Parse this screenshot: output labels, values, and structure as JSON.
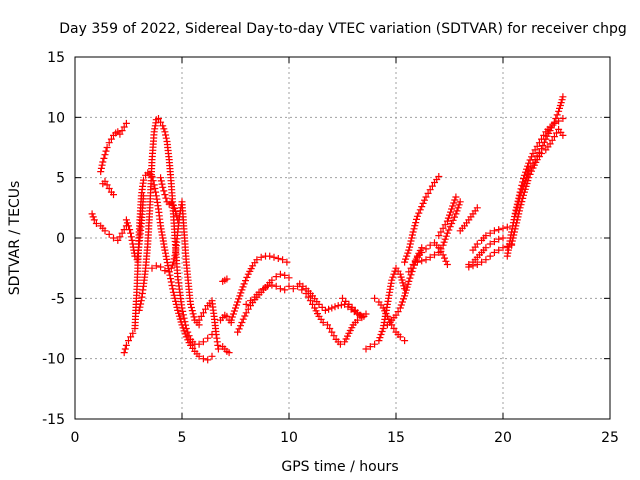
{
  "chart_data": {
    "type": "scatter",
    "title": "Day 359 of 2022, Sidereal Day-to-day VTEC variation (SDTVAR) for receiver chpg",
    "xlabel": "GPS time / hours",
    "ylabel": "SDTVAR / TECUs",
    "xlim": [
      0,
      25
    ],
    "ylim": [
      -15,
      15
    ],
    "xticks": [
      0,
      5,
      10,
      15,
      20,
      25
    ],
    "yticks": [
      -15,
      -10,
      -5,
      0,
      5,
      10,
      15
    ],
    "grid": true,
    "marker": "plus",
    "color": "#ff0000",
    "series": [
      {
        "name": "arc-1",
        "x": [
          0.8,
          0.9,
          1.0,
          1.2,
          1.4,
          1.6,
          1.8,
          2.0,
          2.2,
          2.4
        ],
        "y": [
          2.0,
          1.5,
          1.2,
          1.0,
          0.6,
          0.3,
          0.0,
          -0.2,
          0.4,
          1.0
        ]
      },
      {
        "name": "arc-2",
        "x": [
          1.2,
          1.3,
          1.4,
          1.5,
          1.6,
          1.7,
          1.8,
          1.9,
          2.0,
          2.1,
          2.2,
          2.3,
          2.4
        ],
        "y": [
          5.5,
          6.3,
          6.9,
          7.5,
          7.9,
          8.2,
          8.5,
          8.7,
          8.8,
          8.6,
          8.9,
          9.2,
          9.5
        ]
      },
      {
        "name": "arc-3",
        "x": [
          1.3,
          1.4,
          1.5,
          1.6,
          1.7,
          1.8
        ],
        "y": [
          4.5,
          4.7,
          4.4,
          4.1,
          3.8,
          3.6
        ]
      },
      {
        "name": "arc-4",
        "x": [
          2.3,
          2.4,
          2.5,
          2.6,
          2.7,
          2.8,
          2.9,
          3.0,
          3.1,
          3.2,
          3.3,
          3.4,
          3.5,
          3.6,
          3.7,
          3.8,
          3.9,
          4.0,
          4.2,
          4.4,
          4.6,
          4.8,
          5.0,
          5.2,
          5.4,
          5.6,
          5.8,
          6.0,
          6.2,
          6.4
        ],
        "y": [
          -9.5,
          -8.9,
          -8.5,
          -8.2,
          -7.9,
          -7.5,
          -4.0,
          0.5,
          3.5,
          4.8,
          5.2,
          5.4,
          5.3,
          5.1,
          4.4,
          3.5,
          2.4,
          1.0,
          -1.0,
          -2.8,
          -4.5,
          -6.0,
          -7.2,
          -8.2,
          -8.9,
          -9.4,
          -9.8,
          -10.0,
          -10.1,
          -9.8
        ]
      },
      {
        "name": "arc-5",
        "x": [
          2.4,
          2.5,
          2.6,
          2.7,
          2.8,
          2.9,
          3.0,
          3.1,
          3.2
        ],
        "y": [
          1.5,
          1.0,
          0.4,
          -0.5,
          -1.5,
          -1.8,
          -0.5,
          1.2,
          3.5
        ]
      },
      {
        "name": "arc-6",
        "x": [
          3.0,
          3.1,
          3.2,
          3.3,
          3.4,
          3.5,
          3.6,
          3.7,
          3.8,
          3.9,
          4.0,
          4.1,
          4.2,
          4.3,
          4.4,
          4.5,
          4.6,
          4.7,
          4.8,
          5.0,
          5.2,
          5.4,
          5.6,
          5.8,
          6.0,
          6.2,
          6.4
        ],
        "y": [
          -6.0,
          -5.2,
          -4.0,
          -2.5,
          -0.5,
          2.5,
          6.5,
          8.8,
          9.8,
          9.9,
          9.6,
          9.3,
          8.8,
          8.0,
          6.5,
          4.5,
          2.0,
          -0.8,
          -3.2,
          -5.8,
          -7.5,
          -8.4,
          -8.8,
          -8.8,
          -8.6,
          -8.3,
          -8.0
        ]
      },
      {
        "name": "arc-7",
        "x": [
          3.6,
          3.8,
          4.0,
          4.2,
          4.4,
          4.5,
          4.6,
          4.7,
          4.8,
          4.9,
          5.0,
          5.2,
          5.4,
          5.6,
          5.8
        ],
        "y": [
          -2.5,
          -2.3,
          -2.4,
          -2.7,
          -2.8,
          -2.5,
          -2.0,
          -1.2,
          0.5,
          2.0,
          3.0,
          -2.0,
          -5.5,
          -6.8,
          -7.2
        ]
      },
      {
        "name": "arc-8",
        "x": [
          4.0,
          4.1,
          4.2,
          4.3,
          4.4,
          4.5,
          4.6,
          4.7,
          4.8
        ],
        "y": [
          5.0,
          4.2,
          3.6,
          3.0,
          2.8,
          2.9,
          2.7,
          2.2,
          1.5
        ]
      },
      {
        "name": "arc-9",
        "x": [
          5.8,
          5.9,
          6.0,
          6.1,
          6.2,
          6.3,
          6.4,
          6.5,
          6.6,
          6.7
        ],
        "y": [
          -6.8,
          -6.5,
          -6.2,
          -5.9,
          -5.6,
          -5.4,
          -5.2,
          -6.5,
          -8.0,
          -9.2
        ]
      },
      {
        "name": "arc-10",
        "x": [
          6.8,
          6.9,
          7.0,
          7.1,
          7.2,
          7.3
        ],
        "y": [
          -6.8,
          -6.6,
          -6.4,
          -6.5,
          -6.8,
          -7.0
        ]
      },
      {
        "name": "arc-11",
        "x": [
          6.9,
          7.0,
          7.1,
          7.2
        ],
        "y": [
          -9.0,
          -9.2,
          -9.4,
          -9.5
        ]
      },
      {
        "name": "arc-12",
        "x": [
          6.9,
          7.0,
          7.1
        ],
        "y": [
          -3.6,
          -3.5,
          -3.4
        ]
      },
      {
        "name": "arc-13",
        "x": [
          7.3,
          7.5,
          7.7,
          7.9,
          8.1,
          8.3,
          8.5,
          8.7,
          8.9,
          9.1,
          9.3,
          9.5,
          9.7,
          9.9
        ],
        "y": [
          -6.8,
          -5.8,
          -4.8,
          -3.8,
          -3.0,
          -2.3,
          -1.8,
          -1.6,
          -1.5,
          -1.5,
          -1.6,
          -1.7,
          -1.8,
          -2.0
        ]
      },
      {
        "name": "arc-14",
        "x": [
          7.6,
          7.8,
          8.0,
          8.2,
          8.4,
          8.6,
          8.8,
          9.0,
          9.2,
          9.4,
          9.6,
          9.8,
          10.0
        ],
        "y": [
          -7.8,
          -7.0,
          -6.2,
          -5.6,
          -5.1,
          -4.7,
          -4.3,
          -3.9,
          -3.5,
          -3.2,
          -3.0,
          -3.1,
          -3.3
        ]
      },
      {
        "name": "arc-15",
        "x": [
          8.0,
          8.2,
          8.4,
          8.6,
          8.8,
          9.0,
          9.2,
          9.4,
          9.6,
          9.8
        ],
        "y": [
          -5.5,
          -5.2,
          -4.9,
          -4.5,
          -4.2,
          -4.0,
          -3.9,
          -4.0,
          -4.2,
          -4.3
        ]
      },
      {
        "name": "arc-16",
        "x": [
          10.0,
          10.2,
          10.4,
          10.6,
          10.8,
          11.0,
          11.2,
          11.4,
          11.6,
          11.8,
          12.0,
          12.2,
          12.4,
          12.6,
          12.8,
          13.0,
          13.2,
          13.4,
          13.6
        ],
        "y": [
          -4.0,
          -4.2,
          -4.0,
          -4.3,
          -4.6,
          -5.2,
          -5.8,
          -6.5,
          -7.0,
          -7.2,
          -7.8,
          -8.4,
          -8.8,
          -8.6,
          -7.9,
          -7.2,
          -6.8,
          -6.5,
          -6.3
        ]
      },
      {
        "name": "arc-17",
        "x": [
          10.5,
          10.8,
          11.1,
          11.4,
          11.7,
          12.0,
          12.3,
          12.6,
          12.9,
          13.2,
          13.5
        ],
        "y": [
          -3.8,
          -4.2,
          -4.8,
          -5.5,
          -6.0,
          -5.8,
          -5.6,
          -5.5,
          -5.9,
          -6.3,
          -6.5
        ]
      },
      {
        "name": "arc-18",
        "x": [
          12.5,
          12.8,
          13.1,
          13.4
        ],
        "y": [
          -5.0,
          -5.5,
          -6.0,
          -6.6
        ]
      },
      {
        "name": "arc-19",
        "x": [
          13.6,
          13.8,
          14.0,
          14.2,
          14.4,
          14.6,
          14.8,
          15.0,
          15.2,
          15.4
        ],
        "y": [
          -9.2,
          -9.0,
          -8.8,
          -8.5,
          -7.5,
          -5.5,
          -3.5,
          -2.5,
          -3.0,
          -4.2
        ]
      },
      {
        "name": "arc-20",
        "x": [
          14.0,
          14.2,
          14.4,
          14.6,
          14.8,
          15.0,
          15.2,
          15.4
        ],
        "y": [
          -5.0,
          -5.3,
          -5.8,
          -6.5,
          -7.2,
          -7.8,
          -8.2,
          -8.5
        ]
      },
      {
        "name": "arc-21",
        "x": [
          14.6,
          14.8,
          15.0,
          15.2,
          15.4,
          15.6,
          15.8,
          16.0,
          16.2
        ],
        "y": [
          -7.2,
          -6.8,
          -6.4,
          -5.8,
          -4.8,
          -3.6,
          -2.5,
          -1.5,
          -0.8
        ]
      },
      {
        "name": "arc-22",
        "x": [
          15.4,
          15.6,
          15.8,
          16.0,
          16.2,
          16.4,
          16.6,
          16.8,
          17.0
        ],
        "y": [
          -2.0,
          -1.0,
          0.5,
          1.8,
          2.6,
          3.4,
          4.0,
          4.6,
          5.1
        ]
      },
      {
        "name": "arc-23",
        "x": [
          15.6,
          15.8,
          16.0,
          16.2,
          16.4,
          16.6,
          16.8,
          17.0,
          17.2,
          17.4
        ],
        "y": [
          -2.8,
          -2.2,
          -1.6,
          -1.2,
          -0.9,
          -0.6,
          -0.4,
          -0.8,
          -1.4,
          -2.2
        ]
      },
      {
        "name": "arc-24",
        "x": [
          16.0,
          16.2,
          16.4,
          16.6,
          16.8,
          17.0,
          17.2,
          17.4,
          17.6,
          17.8,
          18.0
        ],
        "y": [
          -2.0,
          -1.9,
          -1.8,
          -1.6,
          -1.4,
          -1.2,
          -0.6,
          0.4,
          1.2,
          2.0,
          3.0
        ]
      },
      {
        "name": "arc-25",
        "x": [
          17.0,
          17.2,
          17.4,
          17.6,
          17.8
        ],
        "y": [
          0.2,
          0.8,
          1.4,
          2.4,
          3.4
        ]
      },
      {
        "name": "arc-26",
        "x": [
          18.0,
          18.2,
          18.4,
          18.6,
          18.8
        ],
        "y": [
          0.6,
          1.0,
          1.5,
          2.0,
          2.5
        ]
      },
      {
        "name": "arc-27",
        "x": [
          18.4,
          18.6,
          18.8,
          19.0,
          19.2,
          19.4,
          19.6,
          19.8,
          20.0
        ],
        "y": [
          -2.2,
          -2.0,
          -1.6,
          -1.2,
          -0.8,
          -0.5,
          -0.3,
          -0.1,
          0.0
        ]
      },
      {
        "name": "arc-28",
        "x": [
          18.6,
          18.8,
          19.0,
          19.2,
          19.4,
          19.6,
          19.8,
          20.0,
          20.2
        ],
        "y": [
          -1.0,
          -0.5,
          -0.2,
          0.2,
          0.4,
          0.6,
          0.7,
          0.8,
          0.9
        ]
      },
      {
        "name": "arc-29",
        "x": [
          18.4,
          18.6,
          18.8,
          19.0,
          19.2,
          19.4,
          19.6,
          19.8,
          20.0,
          20.2,
          20.4
        ],
        "y": [
          -2.4,
          -2.3,
          -2.2,
          -2.0,
          -1.8,
          -1.5,
          -1.2,
          -1.0,
          -0.8,
          -0.7,
          -0.6
        ]
      },
      {
        "name": "arc-30",
        "x": [
          20.2,
          20.4,
          20.6,
          20.8,
          21.0,
          21.2,
          21.4,
          21.6,
          21.8,
          22.0,
          22.2,
          22.4,
          22.6,
          22.8
        ],
        "y": [
          -1.5,
          0.5,
          2.3,
          3.8,
          5.2,
          6.2,
          7.0,
          7.6,
          8.2,
          8.8,
          9.2,
          9.5,
          9.7,
          9.9
        ]
      },
      {
        "name": "arc-31",
        "x": [
          20.4,
          20.6,
          20.8,
          21.0,
          21.2,
          21.4,
          21.6,
          21.8,
          22.0,
          22.2,
          22.4,
          22.6,
          22.8
        ],
        "y": [
          -0.5,
          1.0,
          2.5,
          3.8,
          5.0,
          5.8,
          6.5,
          7.0,
          7.3,
          7.8,
          8.4,
          9.0,
          8.5
        ]
      },
      {
        "name": "arc-32",
        "x": [
          20.6,
          20.8,
          21.0,
          21.2,
          21.4,
          21.6,
          21.8,
          22.0,
          22.2,
          22.4,
          22.6,
          22.8
        ],
        "y": [
          2.0,
          3.5,
          4.5,
          5.6,
          6.2,
          6.8,
          7.4,
          8.2,
          8.9,
          9.6,
          10.5,
          11.7
        ]
      }
    ]
  }
}
